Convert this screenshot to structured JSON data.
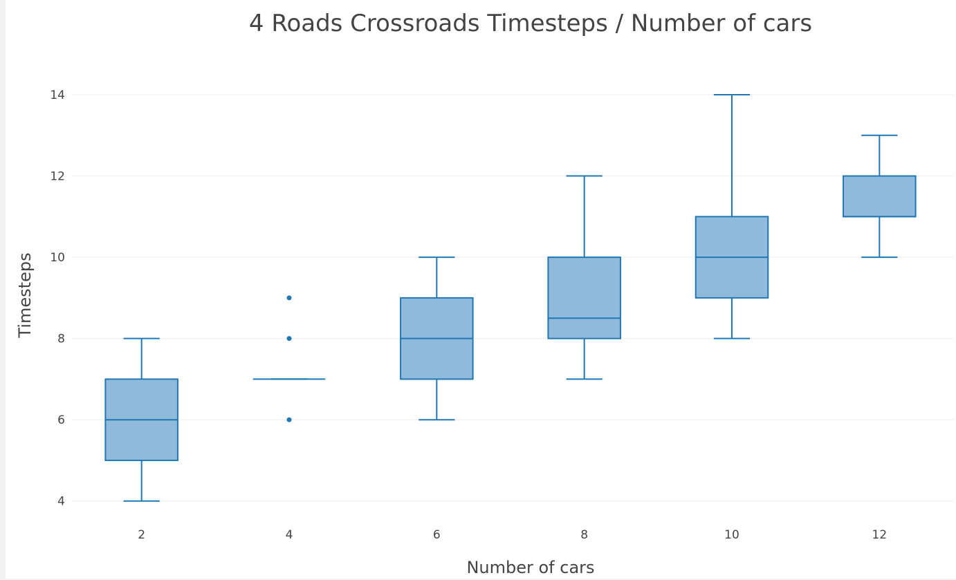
{
  "chart_data": {
    "type": "box",
    "title": "4 Roads Crossroads Timesteps / Number of cars",
    "xlabel": "Number of cars",
    "ylabel": "Timesteps",
    "ylim": [
      3.4,
      14.8
    ],
    "yticks": [
      4,
      6,
      8,
      10,
      12,
      14
    ],
    "grid": true,
    "color": "#1f77b4",
    "fill": "#8fbadb",
    "categories": [
      "2",
      "4",
      "6",
      "8",
      "10",
      "12"
    ],
    "boxes": [
      {
        "x": "2",
        "min": 4,
        "q1": 5,
        "median": 6,
        "q3": 7,
        "max": 8,
        "outliers": []
      },
      {
        "x": "4",
        "min": 7,
        "q1": 7,
        "median": 7,
        "q3": 7,
        "max": 7,
        "outliers": [
          6,
          8,
          9
        ]
      },
      {
        "x": "6",
        "min": 6,
        "q1": 7,
        "median": 8,
        "q3": 9,
        "max": 10,
        "outliers": []
      },
      {
        "x": "8",
        "min": 7,
        "q1": 8,
        "median": 8.5,
        "q3": 10,
        "max": 12,
        "outliers": []
      },
      {
        "x": "10",
        "min": 8,
        "q1": 9,
        "median": 10,
        "q3": 11,
        "max": 14,
        "outliers": []
      },
      {
        "x": "12",
        "min": 10,
        "q1": 11,
        "median": 11,
        "q3": 12,
        "max": 13,
        "outliers": []
      }
    ]
  }
}
